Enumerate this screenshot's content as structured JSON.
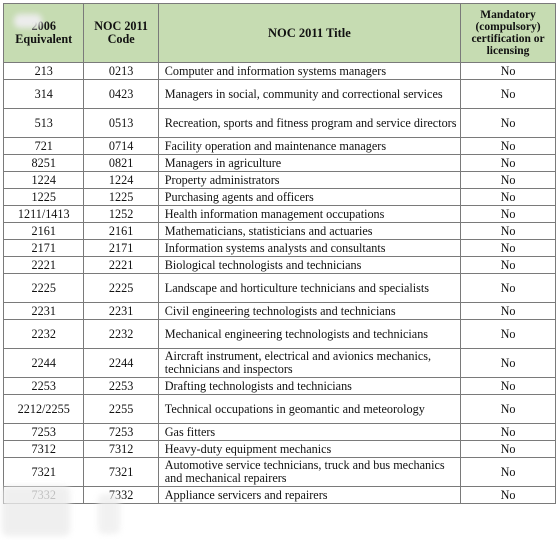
{
  "headers": {
    "noc2006": "2006\nEquivalent",
    "noc2011": "NOC 2011\nCode",
    "title": "NOC 2011 Title",
    "mandatory": "Mandatory\n(compulsory)\ncertification or\nlicensing"
  },
  "rows": [
    {
      "a": "213",
      "b": "0213",
      "t": "Computer and information systems managers",
      "m": "No"
    },
    {
      "a": "314",
      "b": "0423",
      "t": "Managers in social, community and correctional services",
      "m": "No"
    },
    {
      "a": "513",
      "b": "0513",
      "t": "Recreation, sports and fitness program and service directors",
      "m": "No"
    },
    {
      "a": "721",
      "b": "0714",
      "t": "Facility operation and maintenance managers",
      "m": "No"
    },
    {
      "a": "8251",
      "b": "0821",
      "t": "Managers in agriculture",
      "m": "No"
    },
    {
      "a": "1224",
      "b": "1224",
      "t": "Property administrators",
      "m": "No"
    },
    {
      "a": "1225",
      "b": "1225",
      "t": "Purchasing agents and officers",
      "m": "No"
    },
    {
      "a": "1211/1413",
      "b": "1252",
      "t": "Health information management occupations",
      "m": "No"
    },
    {
      "a": "2161",
      "b": "2161",
      "t": "Mathematicians, statisticians and actuaries",
      "m": "No"
    },
    {
      "a": "2171",
      "b": "2171",
      "t": "Information systems analysts and consultants",
      "m": "No"
    },
    {
      "a": "2221",
      "b": "2221",
      "t": "Biological technologists and technicians",
      "m": "No"
    },
    {
      "a": "2225",
      "b": "2225",
      "t": "Landscape and horticulture technicians and specialists",
      "m": "No"
    },
    {
      "a": "2231",
      "b": "2231",
      "t": "Civil engineering technologists and technicians",
      "m": "No"
    },
    {
      "a": "2232",
      "b": "2232",
      "t": "Mechanical engineering technologists and technicians",
      "m": "No"
    },
    {
      "a": "2244",
      "b": "2244",
      "t": "Aircraft instrument, electrical and avionics mechanics, technicians and inspectors",
      "m": "No"
    },
    {
      "a": "2253",
      "b": "2253",
      "t": "Drafting technologists and technicians",
      "m": "No"
    },
    {
      "a": "2212/2255",
      "b": "2255",
      "t": "Technical occupations in geomantic and meteorology",
      "m": "No"
    },
    {
      "a": "7253",
      "b": "7253",
      "t": "Gas fitters",
      "m": "No"
    },
    {
      "a": "7312",
      "b": "7312",
      "t": "Heavy-duty equipment mechanics",
      "m": "No"
    },
    {
      "a": "7321",
      "b": "7321",
      "t": "Automotive service technicians, truck and bus mechanics and mechanical repairers",
      "m": "No"
    },
    {
      "a": "7332",
      "b": "7332",
      "t": "Appliance servicers and repairers",
      "m": "No"
    }
  ]
}
